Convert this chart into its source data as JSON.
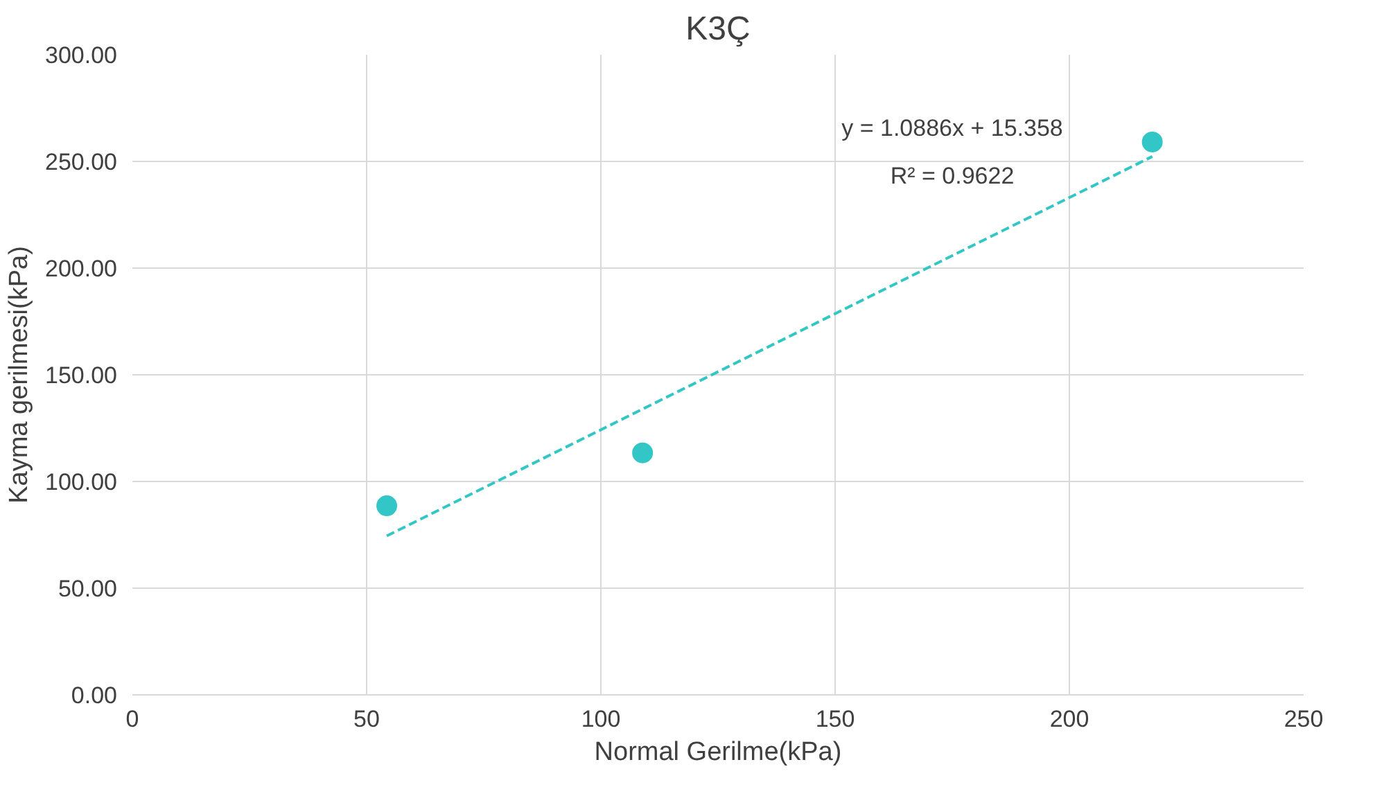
{
  "chart_data": {
    "type": "scatter",
    "title": "K3Ç",
    "xlabel": "Normal Gerilme(kPa)",
    "ylabel": "Kayma gerilmesi(kPa)",
    "x": [
      54.3,
      108.9,
      217.7
    ],
    "series": [
      {
        "color": "#33c6c6",
        "marker": "circle",
        "values": [
          88.6,
          113.4,
          259.1
        ]
      },
      {
        "type": "line",
        "color": "#33c6c6",
        "line_style": "dashed",
        "x": [
          54.3,
          217.7
        ],
        "values": [
          74.5,
          252.3
        ]
      }
    ],
    "annotations": [
      "y = 1.0886x + 15.358",
      "R² = 0.9622"
    ],
    "xlim": [
      0,
      250
    ],
    "xticks": [
      0,
      50,
      100,
      150,
      200,
      250
    ],
    "ylim": [
      0,
      300
    ],
    "yticks": [
      {
        "value": 0,
        "label": "0.00"
      },
      {
        "value": 50,
        "label": "50.00"
      },
      {
        "value": 100,
        "label": "100.00"
      },
      {
        "value": 150,
        "label": "150.00"
      },
      {
        "value": 200,
        "label": "200.00"
      },
      {
        "value": 250,
        "label": "250.00"
      },
      {
        "value": 300,
        "label": "300.00"
      }
    ],
    "grid": true
  }
}
